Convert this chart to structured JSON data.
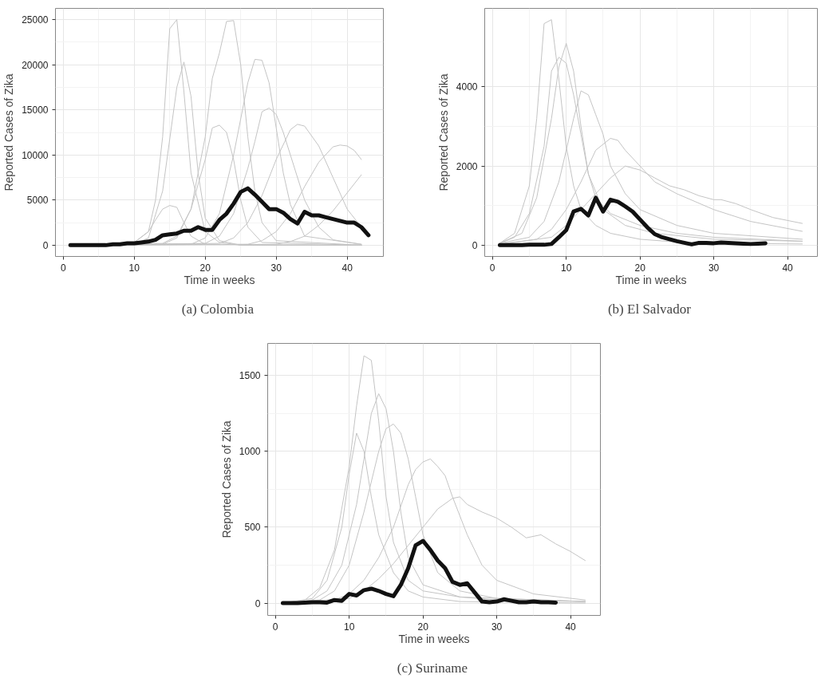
{
  "chart_data": [
    {
      "type": "line",
      "title": "(a)  Colombia",
      "xlabel": "Time in weeks",
      "ylabel": "Reported Cases of Zika",
      "xlim": [
        -1.1,
        45.1
      ],
      "ylim": [
        -1250,
        26250
      ],
      "xticks": [
        0,
        10,
        20,
        30,
        40
      ],
      "yticks": [
        0,
        5000,
        10000,
        15000,
        20000,
        25000
      ],
      "grid": true,
      "series": [
        {
          "color": "#111111",
          "x": [
            1,
            2,
            3,
            4,
            5,
            6,
            7,
            8,
            9,
            10,
            11,
            12,
            13,
            14,
            15,
            16,
            17,
            18,
            19,
            20,
            21,
            22,
            23,
            24,
            25,
            26,
            27,
            28,
            29,
            30,
            31,
            32,
            33,
            34,
            35,
            36,
            37,
            38,
            39,
            40,
            41,
            42,
            43
          ],
          "values": [
            0,
            0,
            0,
            0,
            0,
            0,
            100,
            100,
            200,
            200,
            300,
            400,
            600,
            1100,
            1200,
            1300,
            1600,
            1600,
            2000,
            1700,
            1700,
            2800,
            3500,
            4600,
            5900,
            6300,
            5600,
            4800,
            4000,
            4000,
            3600,
            2900,
            2400,
            3700,
            3300,
            3300,
            3100,
            2900,
            2700,
            2500,
            2500,
            2000,
            1100
          ]
        },
        {
          "color": "#c4c4c4",
          "x": [
            1,
            8,
            10,
            12,
            13,
            14,
            15,
            16,
            17,
            18,
            20,
            22,
            25,
            30,
            42
          ],
          "values": [
            0,
            0,
            300,
            1500,
            5000,
            12000,
            24000,
            25000,
            17000,
            8000,
            1500,
            300,
            0,
            0,
            0
          ]
        },
        {
          "color": "#c4c4c4",
          "x": [
            1,
            10,
            12,
            14,
            16,
            17,
            18,
            19,
            20,
            22,
            25,
            42
          ],
          "values": [
            0,
            100,
            800,
            6000,
            17500,
            20300,
            16500,
            8000,
            3000,
            500,
            0,
            0
          ]
        },
        {
          "color": "#c4c4c4",
          "x": [
            1,
            14,
            16,
            18,
            20,
            21,
            22,
            23,
            24,
            25,
            26,
            27,
            28,
            30,
            42
          ],
          "values": [
            0,
            100,
            800,
            4000,
            12000,
            18500,
            21300,
            24800,
            24900,
            20000,
            12000,
            6000,
            2500,
            500,
            0
          ]
        },
        {
          "color": "#c4c4c4",
          "x": [
            1,
            18,
            20,
            22,
            24,
            25,
            26,
            27,
            28,
            29,
            30,
            31,
            32,
            34,
            42
          ],
          "values": [
            0,
            100,
            800,
            3500,
            10000,
            14000,
            18000,
            20600,
            20500,
            18000,
            13000,
            8000,
            4500,
            1000,
            100
          ]
        },
        {
          "color": "#c4c4c4",
          "x": [
            1,
            20,
            22,
            24,
            26,
            27,
            28,
            29,
            30,
            31,
            32,
            34,
            36,
            38,
            42
          ],
          "values": [
            0,
            200,
            1000,
            3500,
            8500,
            11500,
            14800,
            15200,
            14500,
            12500,
            10000,
            5000,
            2000,
            600,
            100
          ]
        },
        {
          "color": "#c4c4c4",
          "x": [
            1,
            22,
            24,
            26,
            28,
            30,
            32,
            33,
            34,
            36,
            38,
            40,
            42
          ],
          "values": [
            0,
            200,
            800,
            2500,
            5500,
            9500,
            12800,
            13400,
            13200,
            11000,
            7500,
            4000,
            2000
          ]
        },
        {
          "color": "#c4c4c4",
          "x": [
            1,
            26,
            28,
            30,
            32,
            34,
            36,
            38,
            39,
            40,
            41,
            42
          ],
          "values": [
            0,
            100,
            500,
            1500,
            3500,
            6500,
            9200,
            10900,
            11100,
            11000,
            10500,
            9500
          ]
        },
        {
          "color": "#c4c4c4",
          "x": [
            1,
            10,
            12,
            13,
            14,
            15,
            16,
            17,
            18,
            20,
            42
          ],
          "values": [
            0,
            300,
            1500,
            2800,
            4000,
            4400,
            4200,
            2500,
            1000,
            100,
            0
          ]
        },
        {
          "color": "#c4c4c4",
          "x": [
            1,
            14,
            16,
            18,
            20,
            21,
            22,
            23,
            24,
            25,
            26,
            28,
            42
          ],
          "values": [
            0,
            200,
            1000,
            4000,
            9500,
            13000,
            13300,
            12500,
            9500,
            5000,
            2000,
            300,
            0
          ]
        },
        {
          "color": "#c4c4c4",
          "x": [
            1,
            30,
            32,
            34,
            36,
            38,
            40,
            42
          ],
          "values": [
            0,
            100,
            400,
            1000,
            2200,
            3800,
            5800,
            7800
          ]
        }
      ]
    },
    {
      "type": "line",
      "title": "(b)  El Salvador",
      "xlabel": "Time in weeks",
      "ylabel": "Reported Cases of Zika",
      "xlim": [
        -1.05,
        44.05
      ],
      "ylim": [
        -285,
        5985
      ],
      "xticks": [
        0,
        10,
        20,
        30,
        40
      ],
      "yticks": [
        0,
        2000,
        4000
      ],
      "grid": true,
      "series": [
        {
          "color": "#111111",
          "x": [
            1,
            2,
            3,
            4,
            5,
            6,
            7,
            8,
            9,
            10,
            11,
            12,
            13,
            14,
            15,
            16,
            17,
            18,
            19,
            20,
            21,
            22,
            23,
            24,
            25,
            26,
            27,
            28,
            29,
            30,
            31,
            32,
            33,
            34,
            35,
            36,
            37
          ],
          "values": [
            0,
            0,
            0,
            0,
            10,
            10,
            10,
            30,
            200,
            380,
            850,
            920,
            750,
            1200,
            850,
            1150,
            1100,
            980,
            850,
            650,
            450,
            280,
            200,
            150,
            100,
            60,
            20,
            60,
            60,
            50,
            70,
            60,
            50,
            40,
            30,
            40,
            50
          ]
        },
        {
          "color": "#c4c4c4",
          "x": [
            1,
            3,
            5,
            6,
            7,
            8,
            9,
            10,
            11,
            12,
            14,
            16,
            20,
            25,
            30,
            42
          ],
          "values": [
            50,
            300,
            1500,
            3200,
            5600,
            5700,
            4200,
            2500,
            1500,
            900,
            500,
            300,
            150,
            80,
            50,
            30
          ]
        },
        {
          "color": "#c4c4c4",
          "x": [
            1,
            4,
            6,
            8,
            9,
            10,
            11,
            12,
            13,
            14,
            16,
            20,
            25,
            30,
            42
          ],
          "values": [
            50,
            300,
            1200,
            3200,
            4500,
            5100,
            4400,
            3000,
            1800,
            1200,
            800,
            500,
            300,
            200,
            100
          ]
        },
        {
          "color": "#c4c4c4",
          "x": [
            1,
            5,
            7,
            9,
            11,
            12,
            13,
            14,
            15,
            16,
            18,
            20,
            25,
            30,
            42
          ],
          "values": [
            50,
            200,
            600,
            1600,
            3200,
            3900,
            3800,
            3300,
            2800,
            2000,
            1300,
            900,
            500,
            300,
            150
          ]
        },
        {
          "color": "#c4c4c4",
          "x": [
            1,
            6,
            8,
            10,
            12,
            14,
            16,
            17,
            18,
            20,
            22,
            25,
            30,
            35,
            42
          ],
          "values": [
            30,
            150,
            400,
            900,
            1600,
            2400,
            2700,
            2650,
            2400,
            2000,
            1600,
            1300,
            900,
            600,
            350
          ]
        },
        {
          "color": "#c4c4c4",
          "x": [
            1,
            8,
            10,
            12,
            14,
            16,
            18,
            20,
            22,
            24,
            26,
            28,
            30,
            31,
            33,
            35,
            38,
            42
          ],
          "values": [
            20,
            200,
            500,
            900,
            1300,
            1700,
            2000,
            1900,
            1700,
            1500,
            1400,
            1250,
            1150,
            1150,
            1050,
            900,
            700,
            550
          ]
        },
        {
          "color": "#c4c4c4",
          "x": [
            1,
            3,
            5,
            7,
            8,
            9,
            10,
            11,
            12,
            13,
            15,
            18,
            22,
            30,
            42
          ],
          "values": [
            50,
            200,
            800,
            2500,
            4400,
            4750,
            4600,
            3800,
            2800,
            1800,
            900,
            500,
            300,
            150,
            100
          ]
        }
      ]
    },
    {
      "type": "line",
      "title": "(c)  Suriname",
      "xlabel": "Time in weeks",
      "ylabel": "Reported Cases of Zika",
      "xlim": [
        -1.05,
        44.05
      ],
      "ylim": [
        -81.5,
        1711.5
      ],
      "xticks": [
        0,
        10,
        20,
        30,
        40
      ],
      "yticks": [
        0,
        500,
        1000,
        1500
      ],
      "grid": true,
      "series": [
        {
          "color": "#111111",
          "x": [
            1,
            2,
            3,
            4,
            5,
            6,
            7,
            8,
            9,
            10,
            11,
            12,
            13,
            14,
            15,
            16,
            17,
            18,
            19,
            20,
            21,
            22,
            23,
            24,
            25,
            26,
            27,
            28,
            29,
            30,
            31,
            32,
            33,
            34,
            35,
            36,
            37,
            38
          ],
          "values": [
            0,
            0,
            0,
            3,
            5,
            5,
            3,
            20,
            15,
            60,
            50,
            85,
            95,
            80,
            60,
            45,
            120,
            230,
            380,
            410,
            350,
            280,
            230,
            140,
            120,
            130,
            70,
            10,
            5,
            10,
            25,
            15,
            5,
            5,
            10,
            5,
            5,
            3
          ]
        },
        {
          "color": "#c4c4c4",
          "x": [
            1,
            4,
            6,
            8,
            10,
            11,
            12,
            13,
            14,
            15,
            16,
            18,
            20,
            25,
            30,
            42
          ],
          "values": [
            0,
            20,
            100,
            350,
            900,
            1300,
            1630,
            1600,
            1200,
            700,
            400,
            150,
            80,
            40,
            20,
            10
          ]
        },
        {
          "color": "#c4c4c4",
          "x": [
            1,
            5,
            7,
            9,
            11,
            12,
            13,
            14,
            15,
            16,
            17,
            18,
            20,
            25,
            42
          ],
          "values": [
            0,
            20,
            80,
            250,
            650,
            950,
            1250,
            1380,
            1280,
            1000,
            600,
            300,
            120,
            40,
            10
          ]
        },
        {
          "color": "#c4c4c4",
          "x": [
            1,
            6,
            8,
            10,
            12,
            14,
            15,
            16,
            17,
            18,
            19,
            20,
            22,
            25,
            30,
            42
          ],
          "values": [
            0,
            20,
            80,
            250,
            600,
            1000,
            1150,
            1180,
            1120,
            950,
            700,
            450,
            200,
            80,
            30,
            10
          ]
        },
        {
          "color": "#c4c4c4",
          "x": [
            1,
            8,
            10,
            12,
            14,
            16,
            18,
            19,
            20,
            21,
            22,
            23,
            24,
            26,
            28,
            30,
            35,
            42
          ],
          "values": [
            0,
            20,
            60,
            150,
            300,
            500,
            780,
            880,
            930,
            950,
            900,
            840,
            700,
            450,
            250,
            150,
            60,
            20
          ]
        },
        {
          "color": "#c4c4c4",
          "x": [
            1,
            10,
            12,
            14,
            16,
            18,
            20,
            22,
            24,
            25,
            26,
            28,
            30,
            32,
            34,
            36,
            38,
            40,
            42
          ],
          "values": [
            0,
            30,
            80,
            160,
            260,
            380,
            500,
            620,
            690,
            700,
            650,
            600,
            560,
            500,
            430,
            450,
            390,
            340,
            280
          ]
        },
        {
          "color": "#c4c4c4",
          "x": [
            1,
            5,
            7,
            9,
            10,
            11,
            12,
            13,
            14,
            16,
            18,
            20,
            25,
            42
          ],
          "values": [
            0,
            30,
            150,
            500,
            850,
            1120,
            1000,
            700,
            450,
            200,
            80,
            40,
            10,
            0
          ]
        }
      ]
    }
  ]
}
